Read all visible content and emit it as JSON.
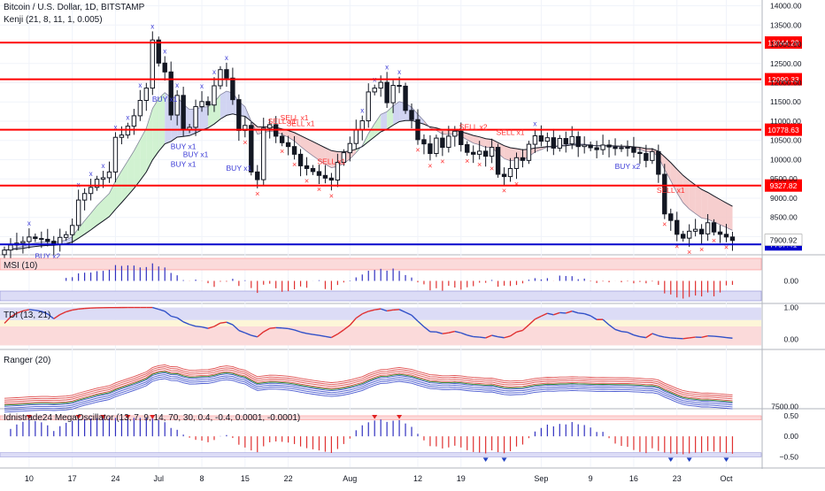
{
  "header": {
    "symbol_title": "Bitcoin / U.S. Dollar, 1D, BITSTAMP",
    "overlay_indicator": "Kenji (21, 8, 11, 1, 0.005)"
  },
  "colors": {
    "candle": "#131722",
    "resistance_line": "#ff0000",
    "support_line": "#0000cc",
    "buy_marker": "#3b3bd6",
    "sell_marker": "#ff3030",
    "band_upper_fill": "#f5c6c6",
    "band_lower_fill": "#c9cdf0",
    "band_bull_fill": "#c9f0c9",
    "axis_text": "#131722",
    "grid": "#f0f3fa"
  },
  "chart_data": [
    {
      "type": "candlestick",
      "title": "Bitcoin / U.S. Dollar, 1D, BITSTAMP",
      "subtitle": "Kenji (21, 8, 11, 1, 0.005)",
      "ylim": [
        7550,
        14150
      ],
      "y_ticks": [
        14000,
        13500,
        13000,
        12500,
        12000,
        11500,
        11000,
        10500,
        10000,
        9500,
        9000,
        8500,
        8000
      ],
      "x_tick_labels": [
        {
          "label": "10",
          "index": 4
        },
        {
          "label": "17",
          "index": 11
        },
        {
          "label": "24",
          "index": 18
        },
        {
          "label": "Jul",
          "index": 25
        },
        {
          "label": "8",
          "index": 32
        },
        {
          "label": "15",
          "index": 39
        },
        {
          "label": "22",
          "index": 46
        },
        {
          "label": "Aug",
          "index": 56
        },
        {
          "label": "12",
          "index": 67
        },
        {
          "label": "19",
          "index": 74
        },
        {
          "label": "Sep",
          "index": 87
        },
        {
          "label": "9",
          "index": 95
        },
        {
          "label": "16",
          "index": 102
        },
        {
          "label": "23",
          "index": 109
        },
        {
          "label": "Oct",
          "index": 117
        }
      ],
      "horizontal_lines": [
        {
          "value": 13044.29,
          "label": "13044.29",
          "kind": "resistance"
        },
        {
          "value": 12090.33,
          "label": "12090.33",
          "kind": "resistance"
        },
        {
          "value": 10778.63,
          "label": "10778.63",
          "kind": "resistance"
        },
        {
          "value": 9327.82,
          "label": "9327.82",
          "kind": "resistance"
        },
        {
          "value": 7797.41,
          "label": "7797.41",
          "kind": "support"
        }
      ],
      "last_price": {
        "value": 7900.92,
        "label": "7900.92"
      },
      "close": [
        7650,
        7780,
        7830,
        7870,
        7990,
        7950,
        7930,
        7880,
        7790,
        7980,
        8050,
        8290,
        8950,
        9120,
        9280,
        9490,
        9530,
        9680,
        10580,
        10640,
        10870,
        11140,
        11540,
        11860,
        13110,
        12510,
        12280,
        11160,
        11670,
        10780,
        10840,
        11380,
        11510,
        11420,
        11920,
        12340,
        12120,
        11560,
        10760,
        10890,
        9680,
        9480,
        10820,
        10910,
        10610,
        10440,
        10340,
        10140,
        9840,
        9770,
        9690,
        9590,
        9520,
        9470,
        9930,
        10180,
        10420,
        10770,
        11010,
        11760,
        11860,
        12010,
        11480,
        11930,
        11910,
        11280,
        11040,
        10520,
        10410,
        10160,
        10560,
        10320,
        10610,
        10740,
        10390,
        10190,
        10140,
        10220,
        10090,
        10320,
        9620,
        9560,
        9770,
        10050,
        9980,
        10400,
        10620,
        10480,
        10570,
        10300,
        10550,
        10410,
        10600,
        10340,
        10380,
        10310,
        10260,
        10380,
        10330,
        10290,
        10310,
        10320,
        10190,
        10160,
        9980,
        10210,
        9620,
        8590,
        8420,
        8060,
        7960,
        8140,
        8190,
        8070,
        8360,
        8120,
        8060,
        7990,
        7900
      ]
    },
    {
      "type": "histogram",
      "title": "MSI (10)",
      "ylim": [
        -1,
        1
      ],
      "y_ticks": [
        0.0
      ],
      "y_tick_labels": [
        "0.00"
      ]
    },
    {
      "type": "line",
      "title": "TDI (13, 21)",
      "ylim": [
        -0.3,
        1.1
      ],
      "y_ticks": [
        1.0,
        0.0
      ],
      "y_tick_labels": [
        "1.00",
        "0.00"
      ]
    },
    {
      "type": "line",
      "title": "Ranger (20)",
      "y_ticks": [
        7500
      ],
      "y_tick_labels": [
        "7500.00"
      ]
    },
    {
      "type": "histogram",
      "title": "Idnistrade24 MegaOscillator (13, 7, 9, 14, 70, 30, 0.4, -0.4, 0.0001, -0.0001)",
      "ylim": [
        -0.75,
        0.65
      ],
      "y_ticks": [
        0.5,
        0.0,
        -0.5
      ],
      "y_tick_labels": [
        "0.50",
        "0.00",
        "−0.50"
      ]
    }
  ],
  "signals": [
    {
      "label": "BUY x2",
      "index": 7,
      "type": "buy"
    },
    {
      "label": "BUY x1",
      "index": 26,
      "type": "buy"
    },
    {
      "label": "BUY x1",
      "index": 29,
      "type": "buy"
    },
    {
      "label": "BUY x1",
      "index": 29,
      "type": "buy"
    },
    {
      "label": "BUY x1",
      "index": 31,
      "type": "buy"
    },
    {
      "label": "BUY x1",
      "index": 38,
      "type": "buy"
    },
    {
      "label": "SELL x1",
      "index": 45,
      "type": "sell"
    },
    {
      "label": "SELL x1",
      "index": 47,
      "type": "sell"
    },
    {
      "label": "SELL x1",
      "index": 48,
      "type": "sell"
    },
    {
      "label": "SELL x1",
      "index": 53,
      "type": "sell"
    },
    {
      "label": "SELL x2",
      "index": 76,
      "type": "sell"
    },
    {
      "label": "SELL x1",
      "index": 82,
      "type": "sell"
    },
    {
      "label": "BUY x2",
      "index": 101,
      "type": "buy"
    },
    {
      "label": "SELL x1",
      "index": 108,
      "type": "sell"
    }
  ]
}
